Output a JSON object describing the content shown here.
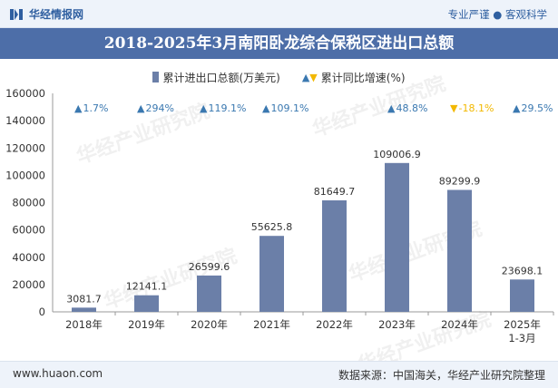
{
  "header": {
    "brand": "华经情报网",
    "tagline": "专业严谨 ● 客观科学",
    "title": "2018-2025年3月南阳卧龙综合保税区进出口总额"
  },
  "legend": {
    "series1": "累计进出口总额(万美元)",
    "series2": "累计同比增速(%)"
  },
  "watermark": "华经产业研究院",
  "footer": {
    "left": "www.huaon.com",
    "right": "数据来源：中国海关，华经产业研究院整理"
  },
  "colors": {
    "bar": "#6b7fa8",
    "title_bg": "#4d6ea8",
    "up": "#3a78b0",
    "down": "#f2b800"
  },
  "chart_data": {
    "type": "bar",
    "title": "2018-2025年3月南阳卧龙综合保税区进出口总额",
    "categories": [
      "2018年",
      "2019年",
      "2020年",
      "2021年",
      "2022年",
      "2023年",
      "2024年",
      "2025年\n1-3月"
    ],
    "series": [
      {
        "name": "累计进出口总额(万美元)",
        "values": [
          3081.7,
          12141.1,
          26599.6,
          55625.8,
          81649.7,
          109006.9,
          89299.9,
          23698.1
        ],
        "labels": [
          "3081.7",
          "12141.1",
          "26599.6",
          "55625.8",
          "81649.7",
          "109006.9",
          "89299.9",
          "23698.1"
        ]
      },
      {
        "name": "累计同比增速(%)",
        "values": [
          1.7,
          294,
          119.1,
          109.1,
          null,
          48.8,
          -18.1,
          29.5
        ],
        "labels": [
          "1.7%",
          "294%",
          "119.1%",
          "109.1%",
          "",
          "48.8%",
          "-18.1%",
          "29.5%"
        ]
      }
    ],
    "ylim": [
      0,
      160000
    ],
    "yticks": [
      0,
      20000,
      40000,
      60000,
      80000,
      100000,
      120000,
      140000,
      160000
    ],
    "grid": false,
    "legend_position": "top"
  }
}
